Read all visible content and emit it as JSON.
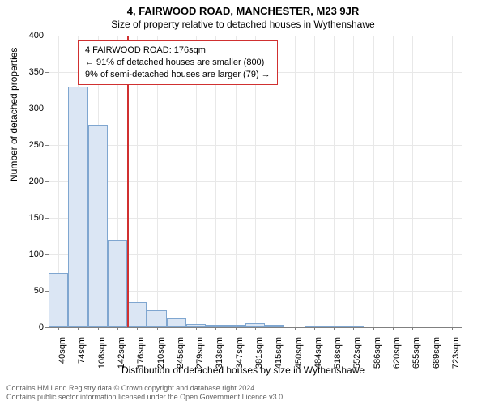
{
  "title": "4, FAIRWOOD ROAD, MANCHESTER, M23 9JR",
  "subtitle": "Size of property relative to detached houses in Wythenshawe",
  "ylabel": "Number of detached properties",
  "xlabel": "Distribution of detached houses by size in Wythenshawe",
  "chart": {
    "type": "bar",
    "ylim": [
      0,
      400
    ],
    "ytick_step": 50,
    "yticks": [
      0,
      50,
      100,
      150,
      200,
      250,
      300,
      350,
      400
    ],
    "xtick_labels": [
      "40sqm",
      "74sqm",
      "108sqm",
      "142sqm",
      "176sqm",
      "210sqm",
      "245sqm",
      "279sqm",
      "313sqm",
      "347sqm",
      "381sqm",
      "415sqm",
      "450sqm",
      "484sqm",
      "518sqm",
      "552sqm",
      "586sqm",
      "620sqm",
      "655sqm",
      "689sqm",
      "723sqm"
    ],
    "values": [
      75,
      330,
      278,
      120,
      35,
      23,
      12,
      5,
      3,
      3,
      6,
      3,
      0,
      1,
      1,
      1,
      0,
      0,
      0,
      0,
      0
    ],
    "bar_fill": "#dbe6f4",
    "bar_stroke": "#7fa6d0",
    "grid_color": "#e8e8e8",
    "axis_color": "#808080",
    "background_color": "#ffffff",
    "bar_width_ratio": 1.0,
    "ref_line": {
      "x_index": 4,
      "color": "#d03030",
      "width": 2
    }
  },
  "legend": {
    "border_color": "#d03030",
    "lines": [
      "4 FAIRWOOD ROAD: 176sqm",
      "← 91% of detached houses are smaller (800)",
      "9% of semi-detached houses are larger (79) →"
    ]
  },
  "footer": {
    "line1": "Contains HM Land Registry data © Crown copyright and database right 2024.",
    "line2": "Contains public sector information licensed under the Open Government Licence v3.0."
  }
}
